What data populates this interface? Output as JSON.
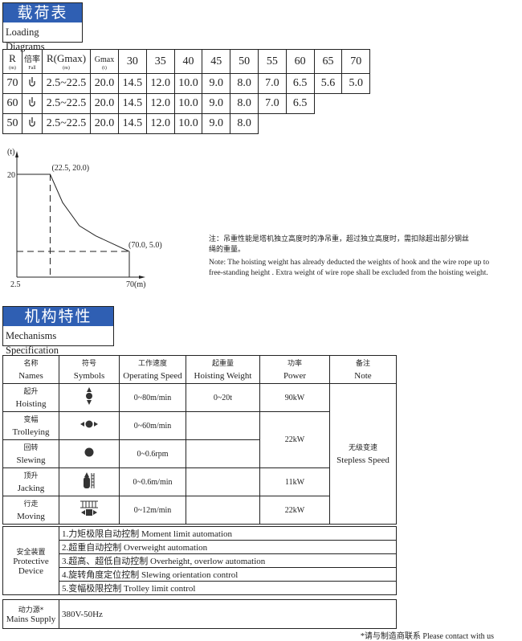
{
  "loading_section": {
    "title_cn": "载荷表",
    "title_en": "Loading Diagrams"
  },
  "loading_table": {
    "headers": {
      "r": "R",
      "r_unit": "(m)",
      "fall_cn": "倍率",
      "fall_en": "Fall",
      "rgmax": "R(Gmax)",
      "rgmax_unit": "(m)",
      "gmax": "Gmax",
      "gmax_unit": "(t)"
    },
    "radii": [
      "30",
      "35",
      "40",
      "45",
      "50",
      "55",
      "60",
      "65",
      "70"
    ],
    "rows": [
      {
        "r": "70",
        "fall_icon": "hook-icon",
        "rgmax": "2.5~22.5",
        "gmax": "20.0",
        "values": [
          "14.5",
          "12.0",
          "10.0",
          "9.0",
          "8.0",
          "7.0",
          "6.5",
          "5.6",
          "5.0"
        ]
      },
      {
        "r": "60",
        "fall_icon": "hook-icon",
        "rgmax": "2.5~22.5",
        "gmax": "20.0",
        "values": [
          "14.5",
          "12.0",
          "10.0",
          "9.0",
          "8.0",
          "7.0",
          "6.5"
        ]
      },
      {
        "r": "50",
        "fall_icon": "hook-icon",
        "rgmax": "2.5~22.5",
        "gmax": "20.0",
        "values": [
          "14.5",
          "12.0",
          "10.0",
          "9.0",
          "8.0"
        ]
      }
    ]
  },
  "chart_data": {
    "type": "line",
    "ylabel": "(t)",
    "xlabel": "(m)",
    "x_ticks": [
      "2.5",
      "70"
    ],
    "y_ticks": [
      "20"
    ],
    "points": [
      [
        2.5,
        20.0
      ],
      [
        22.5,
        20.0
      ],
      [
        30,
        14.5
      ],
      [
        40,
        10.0
      ],
      [
        50,
        8.0
      ],
      [
        60,
        6.5
      ],
      [
        70,
        5.0
      ]
    ],
    "annotations": [
      "(22.5, 20.0)",
      "(70.0, 5.0)"
    ],
    "xlim": [
      2.5,
      70
    ],
    "ylim": [
      0,
      20
    ],
    "grid": false
  },
  "note": {
    "cn": "注：吊重性能是塔机独立高度时的净吊重，超过独立高度时，需扣除超出部分钢丝绳的重量。",
    "en": "Note: The hoisting weight has already deducted the weights of hook and the wire rope up to free-standing height . Extra weight of wire rope shall be excluded from the hoisting weight."
  },
  "mech_section": {
    "title_cn": "机构特性",
    "title_en": "Mechanisms Specification"
  },
  "mech_table": {
    "headers": [
      {
        "cn": "名称",
        "en": "Names"
      },
      {
        "cn": "符号",
        "en": "Symbols"
      },
      {
        "cn": "工作速度",
        "en": "Operating Speed"
      },
      {
        "cn": "起重量",
        "en": "Hoisting Weight"
      },
      {
        "cn": "功率",
        "en": "Power"
      },
      {
        "cn": "备注",
        "en": "Note"
      }
    ],
    "rows": [
      {
        "cn": "起升",
        "en": "Hoisting",
        "icon": "hoisting-icon",
        "speed": "0~80m/min",
        "weight": "0~20t",
        "power": "90kW"
      },
      {
        "cn": "变幅",
        "en": "Trolleying",
        "icon": "trolleying-icon",
        "speed": "0~60m/min",
        "weight": "",
        "power": "22kW"
      },
      {
        "cn": "回转",
        "en": "Slewing",
        "icon": "slewing-icon",
        "speed": "0~0.6rpm",
        "weight": ""
      },
      {
        "cn": "顶升",
        "en": "Jacking",
        "icon": "jacking-icon",
        "speed": "0~0.6m/min",
        "weight": "",
        "power": "11kW"
      },
      {
        "cn": "行走",
        "en": "Moving",
        "icon": "moving-icon",
        "speed": "0~12m/min",
        "weight": "",
        "power": "22kW"
      }
    ],
    "note": {
      "cn": "无级变速",
      "en": "Stepless Speed"
    }
  },
  "protective": {
    "label_cn": "安全装置",
    "label_en1": "Protective",
    "label_en2": "Device",
    "items": [
      "1.力矩极限自动控制  Moment limit automation",
      "2.超重自动控制  Overweight automation",
      "3.超高、超低自动控制  Overheight, overlow automation",
      "4.旋转角度定位控制  Slewing orientation control",
      "5.变幅极限控制  Trolley limit control"
    ]
  },
  "mains": {
    "label_cn": "动力源*",
    "label_en": "Mains Supply",
    "value": "380V-50Hz"
  },
  "footnote": "*请与制造商联系  Please contact with us",
  "colors": {
    "title_band": "#2f5fb3"
  }
}
